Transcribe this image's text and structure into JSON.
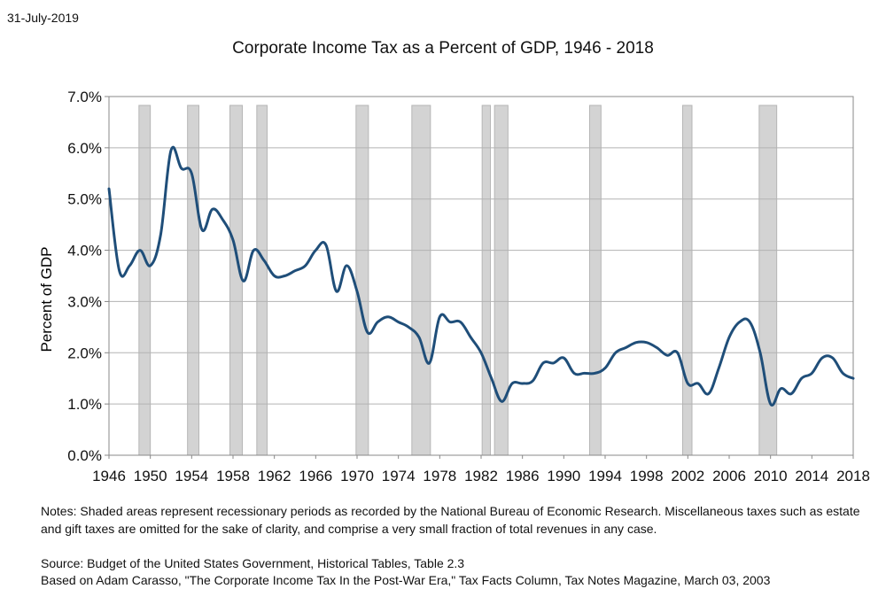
{
  "date": "31-July-2019",
  "notes": "Notes:  Shaded areas represent recessionary periods as recorded by the National Bureau of Economic Research.  Miscellaneous taxes such as estate and gift taxes are omitted for the sake of clarity, and comprise a very small fraction of total revenues in any case.",
  "source_line1": "Source:  Budget of the United States Government, Historical Tables, Table 2.3",
  "source_line2": "Based on Adam Carasso, \"The Corporate Income Tax In the Post-War Era,\" Tax Facts Column, Tax Notes Magazine, March 03, 2003",
  "colors": {
    "line": "#1f4e79",
    "recession_fill": "#cccccc",
    "recession_stroke": "#aaaaaa",
    "grid": "#b3b3b3"
  },
  "chart_data": {
    "type": "line",
    "title": "Corporate Income Tax as a Percent of GDP, 1946 - 2018",
    "xlabel": "",
    "ylabel": "Percent of GDP",
    "xlim": [
      1946,
      2018
    ],
    "ylim": [
      0,
      7
    ],
    "x_ticks": [
      "1946",
      "1950",
      "1954",
      "1958",
      "1962",
      "1966",
      "1970",
      "1974",
      "1978",
      "1982",
      "1986",
      "1990",
      "1994",
      "1998",
      "2002",
      "2006",
      "2010",
      "2014",
      "2018"
    ],
    "y_ticks": [
      "0.0%",
      "1.0%",
      "2.0%",
      "3.0%",
      "4.0%",
      "5.0%",
      "6.0%",
      "7.0%"
    ],
    "grid": true,
    "recessions": [
      [
        1948.9,
        1950.0
      ],
      [
        1953.6,
        1954.7
      ],
      [
        1957.7,
        1958.9
      ],
      [
        1960.3,
        1961.3
      ],
      [
        1969.9,
        1971.1
      ],
      [
        1975.3,
        1977.1
      ],
      [
        1982.1,
        1982.9
      ],
      [
        1983.3,
        1984.6
      ],
      [
        1992.5,
        1993.6
      ],
      [
        2001.5,
        2002.4
      ],
      [
        2008.9,
        2010.6
      ]
    ],
    "series": [
      {
        "name": "Corporate Income Tax as a Percent of GDP",
        "x": [
          1946,
          1947,
          1948,
          1949,
          1950,
          1951,
          1952,
          1953,
          1954,
          1955,
          1956,
          1957,
          1958,
          1959,
          1960,
          1961,
          1962,
          1963,
          1964,
          1965,
          1966,
          1967,
          1968,
          1969,
          1970,
          1971,
          1972,
          1973,
          1974,
          1975,
          1976,
          1977,
          1978,
          1979,
          1980,
          1981,
          1982,
          1983,
          1984,
          1985,
          1986,
          1987,
          1988,
          1989,
          1990,
          1991,
          1992,
          1993,
          1994,
          1995,
          1996,
          1997,
          1998,
          1999,
          2000,
          2001,
          2002,
          2003,
          2004,
          2005,
          2006,
          2007,
          2008,
          2009,
          2010,
          2011,
          2012,
          2013,
          2014,
          2015,
          2016,
          2017,
          2018
        ],
        "values": [
          5.2,
          3.6,
          3.7,
          4.0,
          3.7,
          4.3,
          5.95,
          5.6,
          5.5,
          4.4,
          4.8,
          4.6,
          4.2,
          3.4,
          4.0,
          3.8,
          3.5,
          3.5,
          3.6,
          3.7,
          4.0,
          4.1,
          3.2,
          3.7,
          3.2,
          2.4,
          2.6,
          2.7,
          2.6,
          2.5,
          2.3,
          1.8,
          2.7,
          2.6,
          2.6,
          2.3,
          2.0,
          1.5,
          1.05,
          1.4,
          1.4,
          1.45,
          1.8,
          1.8,
          1.9,
          1.6,
          1.6,
          1.6,
          1.7,
          2.0,
          2.1,
          2.2,
          2.2,
          2.1,
          1.95,
          2.0,
          1.4,
          1.4,
          1.2,
          1.7,
          2.3,
          2.6,
          2.6,
          2.0,
          1.0,
          1.3,
          1.2,
          1.5,
          1.6,
          1.9,
          1.9,
          1.6,
          1.5
        ]
      }
    ]
  }
}
